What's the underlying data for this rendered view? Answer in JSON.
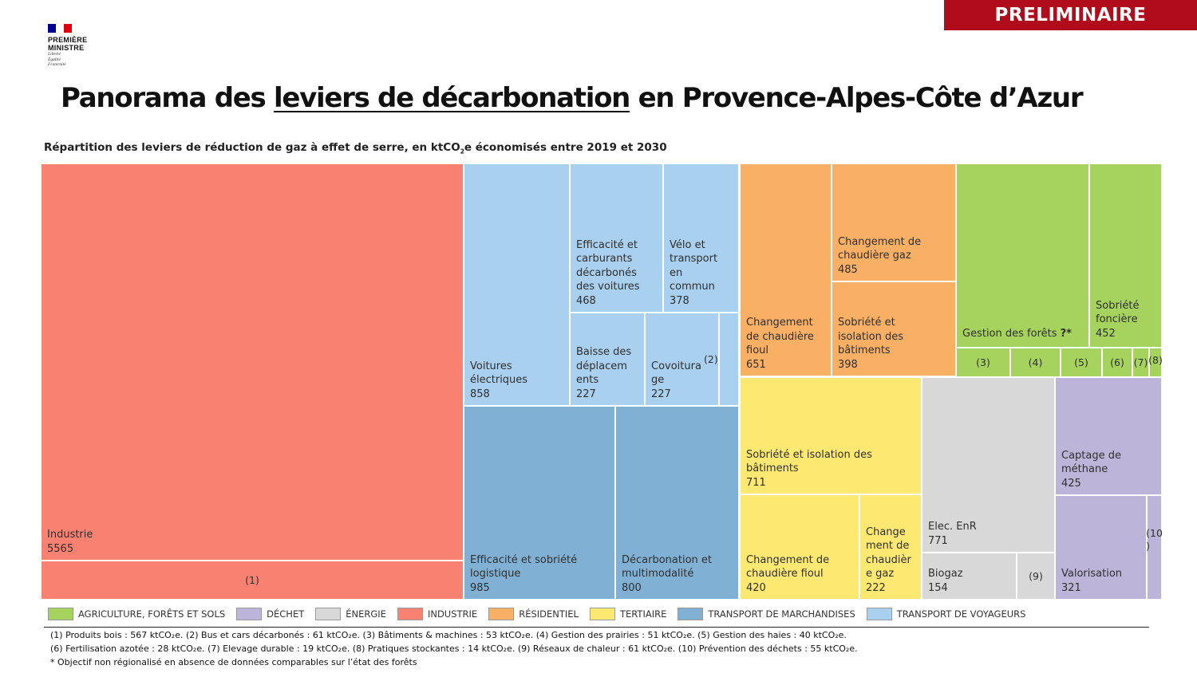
{
  "banner": "PRELIMINAIRE",
  "logo": {
    "line1": "PREMIÈRE",
    "line2": "MINISTRE",
    "motto1": "Liberté",
    "motto2": "Égalité",
    "motto3": "Fraternité"
  },
  "title": {
    "pre": "Panorama des ",
    "underlined": "leviers de décarbonation",
    "post": " en Provence-Alpes-Côte d’Azur"
  },
  "subtitle": {
    "pre": "Répartition des leviers de réduction de gaz à effet de serre, en ktCO",
    "sub": "2",
    "post": "e économisés entre 2019 et 2030"
  },
  "colors": {
    "agriculture": "#a6d35d",
    "dechet": "#bcb5d9",
    "energie": "#d8d8d8",
    "industrie": "#f98172",
    "residentiel": "#f9b065",
    "tertiaire": "#fde972",
    "transport_marchandises": "#80b1d4",
    "transport_voyageurs": "#a9d0ee"
  },
  "chart_data": {
    "type": "treemap",
    "unit": "ktCO2e",
    "tiles": [
      {
        "label": "Industrie",
        "value": "5565",
        "category": "industrie"
      },
      {
        "label": "(1)",
        "category": "industrie"
      },
      {
        "label": "Voitures\nélectriques",
        "value": "858",
        "category": "transport_voyageurs"
      },
      {
        "label": "Efficacité et\ncarburants\ndécarbonés\ndes voitures",
        "value": "468",
        "category": "transport_voyageurs"
      },
      {
        "label": "Vélo et\ntransport\nen\ncommun",
        "value": "378",
        "category": "transport_voyageurs"
      },
      {
        "label": "Baisse des\ndéplacem\nents",
        "value": "227",
        "category": "transport_voyageurs"
      },
      {
        "label": "Covoitura\nge",
        "value": "227",
        "category": "transport_voyageurs"
      },
      {
        "label": "(2)",
        "category": "transport_voyageurs"
      },
      {
        "label": "Efficacité et sobriété\nlogistique",
        "value": "985",
        "category": "transport_marchandises"
      },
      {
        "label": "Décarbonation et\nmultimodalité",
        "value": "800",
        "category": "transport_marchandises"
      },
      {
        "label": "Changement\nde chaudière\nfioul",
        "value": "651",
        "category": "residentiel"
      },
      {
        "label": "Changement de\nchaudière  gaz",
        "value": "485",
        "category": "residentiel"
      },
      {
        "label": "Sobriété et\nisolation des\nbâtiments",
        "value": "398",
        "category": "residentiel"
      },
      {
        "label": "Gestion des forêts",
        "value": "?*",
        "category": "agriculture"
      },
      {
        "label": "Sobriété\nfoncière",
        "value": "452",
        "category": "agriculture"
      },
      {
        "label": "(3)",
        "category": "agriculture"
      },
      {
        "label": "(4)",
        "category": "agriculture"
      },
      {
        "label": "(5)",
        "category": "agriculture"
      },
      {
        "label": "(6)",
        "category": "agriculture"
      },
      {
        "label": "(7)",
        "category": "agriculture"
      },
      {
        "label": "(8)",
        "category": "agriculture"
      },
      {
        "label": "Sobriété et isolation des\nbâtiments",
        "value": "711",
        "category": "tertiaire"
      },
      {
        "label": "Changement de\nchaudière  fioul",
        "value": "420",
        "category": "tertiaire"
      },
      {
        "label": "Change\nment de\nchaudièr\ne gaz",
        "value": "222",
        "category": "tertiaire"
      },
      {
        "label": "Elec. EnR",
        "value": "771",
        "category": "energie"
      },
      {
        "label": "Biogaz",
        "value": "154",
        "category": "energie"
      },
      {
        "label": "(9)",
        "category": "energie"
      },
      {
        "label": "Captage de\nméthane",
        "value": "425",
        "category": "dechet"
      },
      {
        "label": "Valorisation",
        "value": "321",
        "category": "dechet"
      },
      {
        "label": "(10\n)",
        "category": "dechet"
      }
    ]
  },
  "legend": [
    {
      "key": "agriculture",
      "label": "AGRICULTURE, FORÊTS ET SOLS"
    },
    {
      "key": "dechet",
      "label": "DÉCHET"
    },
    {
      "key": "energie",
      "label": "ÉNERGIE"
    },
    {
      "key": "industrie",
      "label": "INDUSTRIE"
    },
    {
      "key": "residentiel",
      "label": "RÉSIDENTIEL"
    },
    {
      "key": "tertiaire",
      "label": "TERTIAIRE"
    },
    {
      "key": "transport_marchandises",
      "label": "TRANSPORT DE MARCHANDISES"
    },
    {
      "key": "transport_voyageurs",
      "label": "TRANSPORT DE VOYAGEURS"
    }
  ],
  "footnotes": [
    "(1) Produits bois : 567 ktCO₂e. (2) Bus et cars décarbonés : 61 ktCO₂e. (3) Bâtiments & machines : 53 ktCO₂e. (4) Gestion des prairies : 51 ktCO₂e. (5) Gestion des haies : 40 ktCO₂e.",
    "(6) Fertilisation azotée : 28 ktCO₂e. (7) Elevage durable : 19 ktCO₂e. (8) Pratiques stockantes : 14 ktCO₂e. (9) Réseaux de chaleur : 61 ktCO₂e. (10) Prévention des déchets : 55 ktCO₂e.",
    "* Objectif non régionalisé en absence de données comparables sur l’état des forêts"
  ]
}
